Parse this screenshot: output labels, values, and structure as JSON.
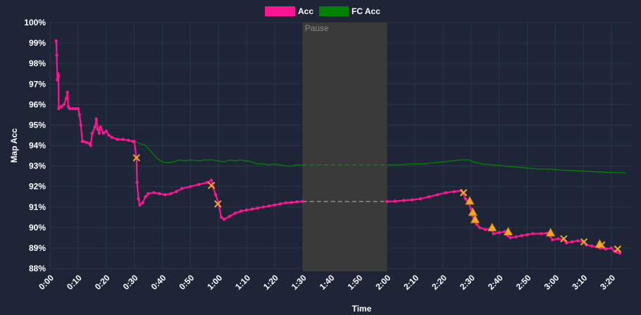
{
  "chart_data": {
    "type": "line",
    "xlabel": "Time",
    "ylabel": "Map Acc",
    "xlim": [
      0,
      207
    ],
    "ylim": [
      88,
      100
    ],
    "x_ticks": [
      "0:00",
      "0:10",
      "0:20",
      "0:30",
      "0:40",
      "0:50",
      "1:00",
      "1:10",
      "1:20",
      "1:30",
      "1:40",
      "1:50",
      "2:00",
      "2:10",
      "2:20",
      "2:30",
      "2:40",
      "2:50",
      "3:00",
      "3:10",
      "3:20"
    ],
    "x_tick_values": [
      0,
      10,
      20,
      30,
      40,
      50,
      60,
      70,
      80,
      90,
      100,
      110,
      120,
      130,
      140,
      150,
      160,
      170,
      180,
      190,
      200
    ],
    "y_ticks": [
      "88%",
      "89%",
      "90%",
      "91%",
      "92%",
      "93%",
      "94%",
      "95%",
      "96%",
      "97%",
      "98%",
      "99%",
      "100%"
    ],
    "y_tick_values": [
      88,
      89,
      90,
      91,
      92,
      93,
      94,
      95,
      96,
      97,
      98,
      99,
      100
    ],
    "grid": true,
    "legend_position": "top",
    "pause": {
      "label": "Pause",
      "start": 90,
      "end": 120,
      "color": "#3a3a3a"
    },
    "series": [
      {
        "name": "Acc",
        "color": "#ff1493",
        "before_pause": [
          [
            2.2,
            99.1
          ],
          [
            2.4,
            98.4
          ],
          [
            2.6,
            97.2
          ],
          [
            2.8,
            97.5
          ],
          [
            3.0,
            97.4
          ],
          [
            3.1,
            95.8
          ],
          [
            4,
            95.9
          ],
          [
            5,
            96.0
          ],
          [
            5.8,
            96.3
          ],
          [
            6.2,
            96.6
          ],
          [
            6.5,
            95.9
          ],
          [
            7,
            95.8
          ],
          [
            8,
            95.8
          ],
          [
            9,
            95.8
          ],
          [
            10,
            95.8
          ],
          [
            10.5,
            95.5
          ],
          [
            11,
            95.0
          ],
          [
            11.5,
            94.2
          ],
          [
            12,
            94.2
          ],
          [
            13,
            94.15
          ],
          [
            14,
            94.1
          ],
          [
            14.5,
            94.0
          ],
          [
            15,
            94.6
          ],
          [
            16,
            94.9
          ],
          [
            16.5,
            95.3
          ],
          [
            17,
            94.8
          ],
          [
            17.5,
            94.6
          ],
          [
            18,
            94.9
          ],
          [
            19,
            94.6
          ],
          [
            20,
            94.7
          ],
          [
            21,
            94.5
          ],
          [
            22,
            94.4
          ],
          [
            24,
            94.3
          ],
          [
            26,
            94.3
          ],
          [
            28,
            94.25
          ],
          [
            29.5,
            94.2
          ],
          [
            30,
            94.2
          ],
          [
            30.8,
            93.4
          ],
          [
            31,
            92.2
          ],
          [
            31.5,
            91.4
          ],
          [
            32,
            91.1
          ],
          [
            33,
            91.2
          ],
          [
            34,
            91.5
          ],
          [
            35,
            91.65
          ],
          [
            37,
            91.7
          ],
          [
            39,
            91.65
          ],
          [
            41,
            91.6
          ],
          [
            43,
            91.65
          ],
          [
            45,
            91.75
          ],
          [
            47,
            91.9
          ],
          [
            50,
            92.0
          ],
          [
            53,
            92.1
          ],
          [
            56,
            92.2
          ],
          [
            57.5,
            92.3
          ],
          [
            58,
            92.0
          ],
          [
            59,
            91.6
          ],
          [
            60,
            91.2
          ],
          [
            61,
            90.5
          ],
          [
            62,
            90.4
          ],
          [
            64,
            90.55
          ],
          [
            66,
            90.7
          ],
          [
            68,
            90.8
          ],
          [
            70,
            90.85
          ],
          [
            72,
            90.9
          ],
          [
            74,
            90.95
          ],
          [
            76,
            91.0
          ],
          [
            78,
            91.05
          ],
          [
            80,
            91.1
          ],
          [
            82,
            91.15
          ],
          [
            84,
            91.2
          ],
          [
            86,
            91.22
          ],
          [
            88,
            91.25
          ],
          [
            90,
            91.27
          ]
        ],
        "after_pause": [
          [
            120,
            91.27
          ],
          [
            123,
            91.28
          ],
          [
            126,
            91.32
          ],
          [
            129,
            91.35
          ],
          [
            132,
            91.4
          ],
          [
            135,
            91.5
          ],
          [
            138,
            91.6
          ],
          [
            141,
            91.7
          ],
          [
            144,
            91.75
          ],
          [
            146.5,
            91.8
          ],
          [
            147,
            91.7
          ],
          [
            148,
            91.4
          ],
          [
            149,
            91.2
          ],
          [
            150,
            90.9
          ],
          [
            150.5,
            90.6
          ],
          [
            151,
            90.3
          ],
          [
            152,
            90.15
          ],
          [
            153,
            90.0
          ],
          [
            155,
            89.9
          ],
          [
            157,
            89.95
          ],
          [
            158,
            89.7
          ],
          [
            160,
            89.75
          ],
          [
            162,
            89.8
          ],
          [
            163,
            89.6
          ],
          [
            164,
            89.5
          ],
          [
            166,
            89.55
          ],
          [
            168,
            89.6
          ],
          [
            170,
            89.65
          ],
          [
            172,
            89.7
          ],
          [
            175,
            89.7
          ],
          [
            177,
            89.72
          ],
          [
            178,
            89.6
          ],
          [
            179,
            89.4
          ],
          [
            181,
            89.45
          ],
          [
            183,
            89.4
          ],
          [
            184,
            89.25
          ],
          [
            186,
            89.3
          ],
          [
            188,
            89.35
          ],
          [
            190,
            89.3
          ],
          [
            191,
            89.15
          ],
          [
            193,
            89.1
          ],
          [
            195,
            89.05
          ],
          [
            196,
            89.0
          ],
          [
            198,
            88.95
          ],
          [
            200,
            89.0
          ],
          [
            201,
            88.85
          ],
          [
            202,
            88.8
          ],
          [
            203,
            88.75
          ]
        ],
        "pause_bridge": [
          [
            90,
            91.27
          ],
          [
            120,
            91.27
          ]
        ]
      },
      {
        "name": "FC Acc",
        "color": "#008000",
        "before_pause": [
          [
            30,
            94.2
          ],
          [
            32,
            94.1
          ],
          [
            34,
            94.0
          ],
          [
            36,
            93.7
          ],
          [
            38,
            93.4
          ],
          [
            40,
            93.2
          ],
          [
            42,
            93.15
          ],
          [
            44,
            93.2
          ],
          [
            46,
            93.3
          ],
          [
            48,
            93.25
          ],
          [
            50,
            93.3
          ],
          [
            53,
            93.25
          ],
          [
            55,
            93.3
          ],
          [
            58,
            93.3
          ],
          [
            60,
            93.25
          ],
          [
            62,
            93.2
          ],
          [
            64,
            93.3
          ],
          [
            66,
            93.25
          ],
          [
            68,
            93.3
          ],
          [
            70,
            93.25
          ],
          [
            72,
            93.2
          ],
          [
            74,
            93.1
          ],
          [
            76,
            93.1
          ],
          [
            78,
            93.05
          ],
          [
            80,
            93.1
          ],
          [
            82,
            93.05
          ],
          [
            84,
            93.0
          ],
          [
            86,
            93.0
          ],
          [
            88,
            93.05
          ],
          [
            90,
            93.05
          ]
        ],
        "after_pause": [
          [
            120,
            93.05
          ],
          [
            124,
            93.05
          ],
          [
            128,
            93.1
          ],
          [
            132,
            93.1
          ],
          [
            136,
            93.15
          ],
          [
            140,
            93.2
          ],
          [
            143,
            93.25
          ],
          [
            146,
            93.3
          ],
          [
            149,
            93.3
          ],
          [
            151,
            93.2
          ],
          [
            154,
            93.1
          ],
          [
            158,
            93.05
          ],
          [
            162,
            93.0
          ],
          [
            166,
            92.95
          ],
          [
            170,
            92.9
          ],
          [
            174,
            92.85
          ],
          [
            178,
            92.85
          ],
          [
            182,
            92.8
          ],
          [
            186,
            92.78
          ],
          [
            190,
            92.75
          ],
          [
            194,
            92.72
          ],
          [
            198,
            92.7
          ],
          [
            202,
            92.68
          ],
          [
            205,
            92.68
          ]
        ],
        "pause_bridge": [
          [
            90,
            93.05
          ],
          [
            120,
            93.05
          ]
        ]
      }
    ],
    "markers": {
      "miss_x": [
        [
          30.8,
          93.4
        ],
        [
          57.5,
          92.05
        ],
        [
          59.8,
          91.15
        ],
        [
          147.3,
          91.7
        ],
        [
          183,
          89.45
        ],
        [
          190.2,
          89.3
        ],
        [
          196.5,
          89.15
        ],
        [
          202.2,
          88.95
        ]
      ],
      "triangle": [
        [
          149.5,
          91.3
        ],
        [
          150.6,
          90.75
        ],
        [
          151.4,
          90.4
        ],
        [
          157.5,
          90.0
        ],
        [
          163.2,
          89.8
        ],
        [
          178.3,
          89.75
        ],
        [
          195.8,
          89.2
        ]
      ]
    }
  }
}
